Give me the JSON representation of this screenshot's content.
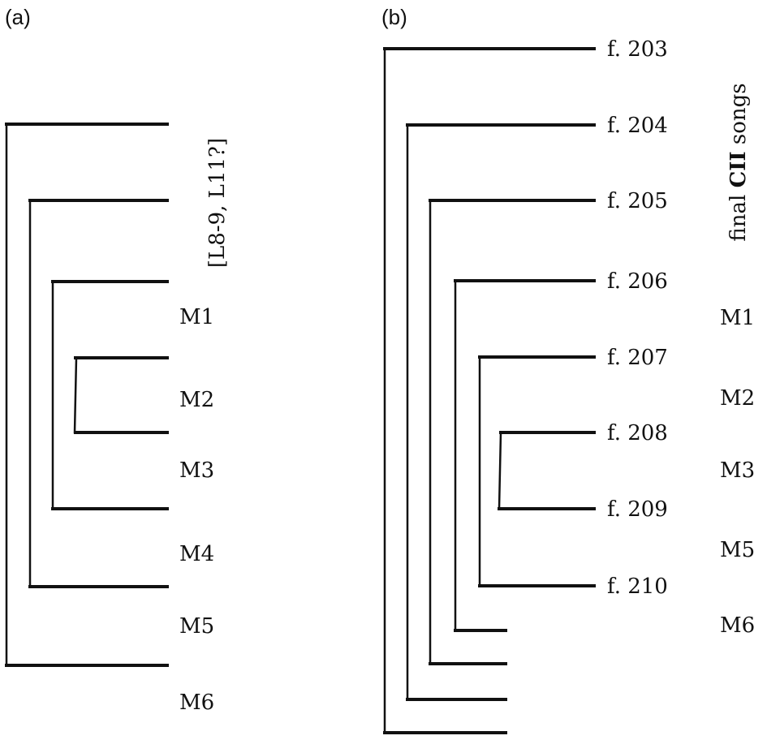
{
  "panel_a": {
    "label": "(a)",
    "bracket_text": "[L8-9, L11?]",
    "leaves": [
      "M1",
      "M2",
      "M3",
      "M4",
      "M5",
      "M6"
    ]
  },
  "panel_b": {
    "label": "(b)",
    "folios": [
      "f. 203",
      "f. 204",
      "f. 205",
      "f. 206",
      "f. 207",
      "f. 208",
      "f. 209",
      "f. 210"
    ],
    "side_note": {
      "prefix": "final ",
      "bold": "CII",
      "suffix": " songs"
    },
    "leaves": [
      "M1",
      "M2",
      "M3",
      "M5",
      "M6"
    ]
  },
  "colors": {
    "line": "#111111",
    "background": "#ffffff"
  }
}
